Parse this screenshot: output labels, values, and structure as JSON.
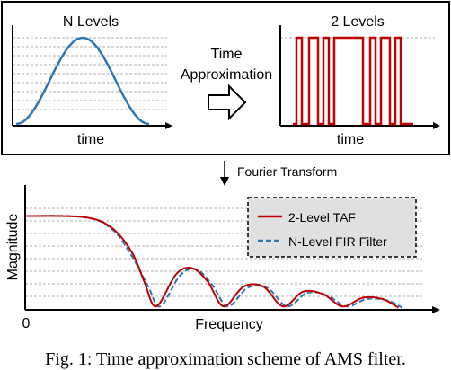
{
  "top_panel": {
    "left_title": "N Levels",
    "right_title": "2 Levels",
    "left_xlabel": "time",
    "right_xlabel": "time",
    "arrow_label_line1": "Time",
    "arrow_label_line2": "Approximation"
  },
  "transform_label": "Fourier Transform",
  "chart_data": {
    "type": "line",
    "xlabel": "Frequency",
    "ylabel": "Magnitude",
    "x_origin_label": "0",
    "grid": true,
    "legend": {
      "placement": "top-right",
      "entries": [
        {
          "name": "2-Level TAF",
          "color": "#c00000",
          "style": "solid"
        },
        {
          "name": "N-Level FIR Filter",
          "color": "#2e75b6",
          "style": "dashed"
        }
      ]
    },
    "series": [
      {
        "name": "2-Level TAF",
        "color": "#c00000",
        "x": [
          0,
          0.15,
          0.22,
          0.27,
          0.3,
          0.33,
          0.38,
          0.42,
          0.46,
          0.5,
          0.55,
          0.6,
          0.65,
          0.7,
          0.75,
          0.8,
          0.85,
          0.9,
          0.94
        ],
        "y": [
          0.75,
          0.74,
          0.65,
          0.45,
          0.22,
          0.02,
          0.28,
          0.33,
          0.22,
          0.02,
          0.18,
          0.18,
          0.02,
          0.14,
          0.12,
          0.02,
          0.09,
          0.08,
          0.01
        ]
      },
      {
        "name": "N-Level FIR Filter",
        "color": "#2e75b6",
        "x": [
          0,
          0.15,
          0.22,
          0.27,
          0.31,
          0.34,
          0.39,
          0.43,
          0.47,
          0.51,
          0.56,
          0.61,
          0.66,
          0.71,
          0.76,
          0.81,
          0.86,
          0.91,
          0.95
        ],
        "y": [
          0.75,
          0.74,
          0.64,
          0.42,
          0.18,
          0.02,
          0.27,
          0.32,
          0.2,
          0.02,
          0.17,
          0.17,
          0.02,
          0.13,
          0.11,
          0.02,
          0.08,
          0.07,
          0.01
        ]
      }
    ]
  },
  "caption": "Fig. 1: Time approximation scheme of AMS filter."
}
